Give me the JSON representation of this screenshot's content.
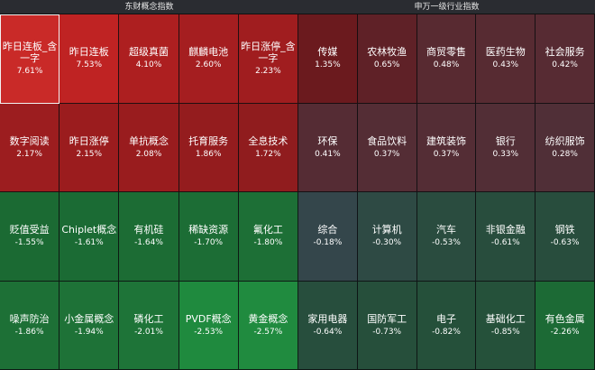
{
  "left": {
    "title": "东财概念指数",
    "tiles": [
      {
        "name": "昨日连板_含一字",
        "value": "7.61%",
        "color": "#c92a28"
      },
      {
        "name": "昨日连板",
        "value": "7.53%",
        "color": "#bf2323"
      },
      {
        "name": "超级真菌",
        "value": "4.10%",
        "color": "#ad1f20"
      },
      {
        "name": "麒麟电池",
        "value": "2.60%",
        "color": "#a51e20"
      },
      {
        "name": "昨日涨停_含一字",
        "value": "2.23%",
        "color": "#a01d1f"
      },
      {
        "name": "数字阅读",
        "value": "2.17%",
        "color": "#9c1d1f"
      },
      {
        "name": "昨日涨停",
        "value": "2.15%",
        "color": "#9b1c1e"
      },
      {
        "name": "单抗概念",
        "value": "2.08%",
        "color": "#991c1e"
      },
      {
        "name": "托育服务",
        "value": "1.86%",
        "color": "#941c1e"
      },
      {
        "name": "全息技术",
        "value": "1.72%",
        "color": "#901c1e"
      },
      {
        "name": "贬值受益",
        "value": "-1.55%",
        "color": "#1b6a33"
      },
      {
        "name": "Chiplet概念",
        "value": "-1.61%",
        "color": "#1b6b34"
      },
      {
        "name": "有机硅",
        "value": "-1.64%",
        "color": "#1c6c34"
      },
      {
        "name": "稀缺资源",
        "value": "-1.70%",
        "color": "#1c6d35"
      },
      {
        "name": "氟化工",
        "value": "-1.80%",
        "color": "#1d6f36"
      },
      {
        "name": "噪声防治",
        "value": "-1.86%",
        "color": "#1d7036"
      },
      {
        "name": "小金属概念",
        "value": "-1.94%",
        "color": "#1e7237"
      },
      {
        "name": "磷化工",
        "value": "-2.01%",
        "color": "#1e7438"
      },
      {
        "name": "PVDF概念",
        "value": "-2.53%",
        "color": "#1f8a3e"
      },
      {
        "name": "黄金概念",
        "value": "-2.57%",
        "color": "#208b3f"
      }
    ]
  },
  "right": {
    "title": "申万一级行业指数",
    "tiles": [
      {
        "name": "传媒",
        "value": "1.35%",
        "color": "#6b1a1e"
      },
      {
        "name": "农林牧渔",
        "value": "0.65%",
        "color": "#5f2127"
      },
      {
        "name": "商贸零售",
        "value": "0.48%",
        "color": "#582a31"
      },
      {
        "name": "医药生物",
        "value": "0.43%",
        "color": "#572b32"
      },
      {
        "name": "社会服务",
        "value": "0.42%",
        "color": "#572b33"
      },
      {
        "name": "环保",
        "value": "0.41%",
        "color": "#552c34"
      },
      {
        "name": "食品饮料",
        "value": "0.37%",
        "color": "#542d35"
      },
      {
        "name": "建筑装饰",
        "value": "0.37%",
        "color": "#542d35"
      },
      {
        "name": "银行",
        "value": "0.33%",
        "color": "#522e36"
      },
      {
        "name": "纺织服饰",
        "value": "0.28%",
        "color": "#502f37"
      },
      {
        "name": "综合",
        "value": "-0.18%",
        "color": "#34464b"
      },
      {
        "name": "计算机",
        "value": "-0.30%",
        "color": "#2e4a44"
      },
      {
        "name": "汽车",
        "value": "-0.53%",
        "color": "#2a4c3f"
      },
      {
        "name": "非银金融",
        "value": "-0.61%",
        "color": "#284d3d"
      },
      {
        "name": "钢铁",
        "value": "-0.63%",
        "color": "#284d3d"
      },
      {
        "name": "家用电器",
        "value": "-0.64%",
        "color": "#274e3d"
      },
      {
        "name": "国防军工",
        "value": "-0.73%",
        "color": "#264f3b"
      },
      {
        "name": "电子",
        "value": "-0.82%",
        "color": "#25503a"
      },
      {
        "name": "基础化工",
        "value": "-0.85%",
        "color": "#25513a"
      },
      {
        "name": "有色金属",
        "value": "-2.26%",
        "color": "#1c6a35"
      }
    ]
  }
}
